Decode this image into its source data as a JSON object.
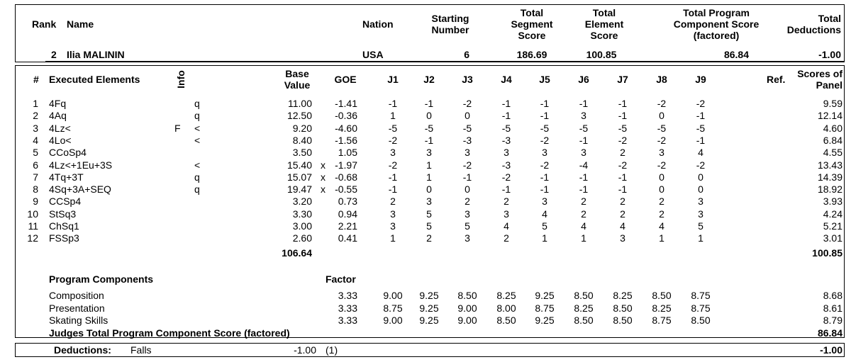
{
  "header": {
    "rank_label": "Rank",
    "name_label": "Name",
    "nation_label": "Nation",
    "starting_number_label": [
      "Starting",
      "Number"
    ],
    "tss_label": [
      "Total",
      "Segment",
      "Score"
    ],
    "tes_label": [
      "Total",
      "Element",
      "Score"
    ],
    "pcs_label": [
      "Total Program",
      "Component Score",
      "(factored)"
    ],
    "ded_label": [
      "Total",
      "Deductions"
    ]
  },
  "skater": {
    "rank": "2",
    "name": "Ilia MALININ",
    "nation": "USA",
    "starting_number": "6",
    "tss": "186.69",
    "tes": "100.85",
    "pcs": "86.84",
    "deductions": "-1.00"
  },
  "elements_header": {
    "num": "#",
    "executed": "Executed Elements",
    "info": "Info",
    "base_value": [
      "Base",
      "Value"
    ],
    "goe": "GOE",
    "judges": [
      "J1",
      "J2",
      "J3",
      "J4",
      "J5",
      "J6",
      "J7",
      "J8",
      "J9"
    ],
    "ref": "Ref.",
    "scores": [
      "Scores of",
      "Panel"
    ]
  },
  "elements": [
    {
      "num": "1",
      "name": "4Fq",
      "mark": "",
      "info": "q",
      "base": "11.00",
      "x": "",
      "goe": "-1.41",
      "j": [
        "-1",
        "-1",
        "-2",
        "-1",
        "-1",
        "-1",
        "-1",
        "-2",
        "-2"
      ],
      "score": "9.59"
    },
    {
      "num": "2",
      "name": "4Aq",
      "mark": "",
      "info": "q",
      "base": "12.50",
      "x": "",
      "goe": "-0.36",
      "j": [
        "1",
        "0",
        "0",
        "-1",
        "-1",
        "3",
        "-1",
        "0",
        "-1"
      ],
      "score": "12.14"
    },
    {
      "num": "3",
      "name": "4Lz<",
      "mark": "F",
      "info": "<",
      "base": "9.20",
      "x": "",
      "goe": "-4.60",
      "j": [
        "-5",
        "-5",
        "-5",
        "-5",
        "-5",
        "-5",
        "-5",
        "-5",
        "-5"
      ],
      "score": "4.60"
    },
    {
      "num": "4",
      "name": "4Lo<",
      "mark": "",
      "info": "<",
      "base": "8.40",
      "x": "",
      "goe": "-1.56",
      "j": [
        "-2",
        "-1",
        "-3",
        "-3",
        "-2",
        "-1",
        "-2",
        "-2",
        "-1"
      ],
      "score": "6.84"
    },
    {
      "num": "5",
      "name": "CCoSp4",
      "mark": "",
      "info": "",
      "base": "3.50",
      "x": "",
      "goe": "1.05",
      "j": [
        "3",
        "3",
        "3",
        "3",
        "3",
        "3",
        "2",
        "3",
        "4"
      ],
      "score": "4.55"
    },
    {
      "num": "6",
      "name": "4Lz<+1Eu+3S",
      "mark": "",
      "info": "<",
      "base": "15.40",
      "x": "x",
      "goe": "-1.97",
      "j": [
        "-2",
        "1",
        "-2",
        "-3",
        "-2",
        "-4",
        "-2",
        "-2",
        "-2"
      ],
      "score": "13.43"
    },
    {
      "num": "7",
      "name": "4Tq+3T",
      "mark": "",
      "info": "q",
      "base": "15.07",
      "x": "x",
      "goe": "-0.68",
      "j": [
        "-1",
        "1",
        "-1",
        "-2",
        "-1",
        "-1",
        "-1",
        "0",
        "0"
      ],
      "score": "14.39"
    },
    {
      "num": "8",
      "name": "4Sq+3A+SEQ",
      "mark": "",
      "info": "q",
      "base": "19.47",
      "x": "x",
      "goe": "-0.55",
      "j": [
        "-1",
        "0",
        "0",
        "-1",
        "-1",
        "-1",
        "-1",
        "0",
        "0"
      ],
      "score": "18.92"
    },
    {
      "num": "9",
      "name": "CCSp4",
      "mark": "",
      "info": "",
      "base": "3.20",
      "x": "",
      "goe": "0.73",
      "j": [
        "2",
        "3",
        "2",
        "2",
        "3",
        "2",
        "2",
        "2",
        "3"
      ],
      "score": "3.93"
    },
    {
      "num": "10",
      "name": "StSq3",
      "mark": "",
      "info": "",
      "base": "3.30",
      "x": "",
      "goe": "0.94",
      "j": [
        "3",
        "5",
        "3",
        "3",
        "4",
        "2",
        "2",
        "2",
        "3"
      ],
      "score": "4.24"
    },
    {
      "num": "11",
      "name": "ChSq1",
      "mark": "",
      "info": "",
      "base": "3.00",
      "x": "",
      "goe": "2.21",
      "j": [
        "3",
        "5",
        "5",
        "4",
        "5",
        "4",
        "4",
        "4",
        "5"
      ],
      "score": "5.21"
    },
    {
      "num": "12",
      "name": "FSSp3",
      "mark": "",
      "info": "",
      "base": "2.60",
      "x": "",
      "goe": "0.41",
      "j": [
        "1",
        "2",
        "3",
        "2",
        "1",
        "1",
        "3",
        "1",
        "1"
      ],
      "score": "3.01"
    }
  ],
  "elements_totals": {
    "base": "106.64",
    "score": "100.85"
  },
  "components_header": {
    "title": "Program Components",
    "factor": "Factor"
  },
  "components": [
    {
      "name": "Composition",
      "factor": "3.33",
      "j": [
        "9.00",
        "9.25",
        "8.50",
        "8.25",
        "9.25",
        "8.50",
        "8.25",
        "8.50",
        "8.75"
      ],
      "score": "8.68"
    },
    {
      "name": "Presentation",
      "factor": "3.33",
      "j": [
        "8.75",
        "9.25",
        "9.00",
        "8.00",
        "8.75",
        "8.25",
        "8.50",
        "8.25",
        "8.75"
      ],
      "score": "8.61"
    },
    {
      "name": "Skating Skills",
      "factor": "3.33",
      "j": [
        "9.00",
        "9.25",
        "9.00",
        "8.50",
        "9.25",
        "8.50",
        "8.50",
        "8.75",
        "8.50"
      ],
      "score": "8.79"
    }
  ],
  "components_total": {
    "label": "Judges Total Program Component Score (factored)",
    "score": "86.84"
  },
  "deductions": {
    "label": "Deductions:",
    "type": "Falls",
    "value": "-1.00",
    "count": "(1)",
    "total": "-1.00"
  }
}
